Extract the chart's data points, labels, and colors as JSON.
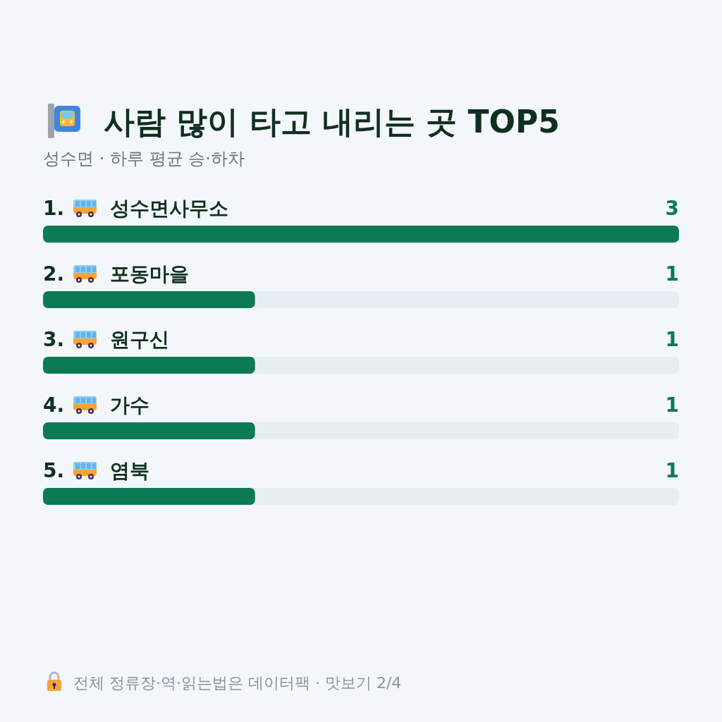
{
  "chart_data": {
    "type": "bar",
    "orientation": "horizontal",
    "title": "사람 많이 타고 내리는 곳 TOP5",
    "subtitle": "성수면 · 하루 평균 승·하차",
    "categories": [
      "1. 성수면사무소",
      "2. 포동마을",
      "3. 원구신",
      "4. 가수",
      "5. 염북"
    ],
    "values": [
      3,
      1,
      1,
      1,
      1
    ],
    "color": "#0b7a55",
    "xlim": [
      0,
      3
    ],
    "data_labels": true,
    "annotations": [
      "전체 정류장·역·읽는법은 데이터팩 · 맛보기 2/4"
    ]
  }
}
